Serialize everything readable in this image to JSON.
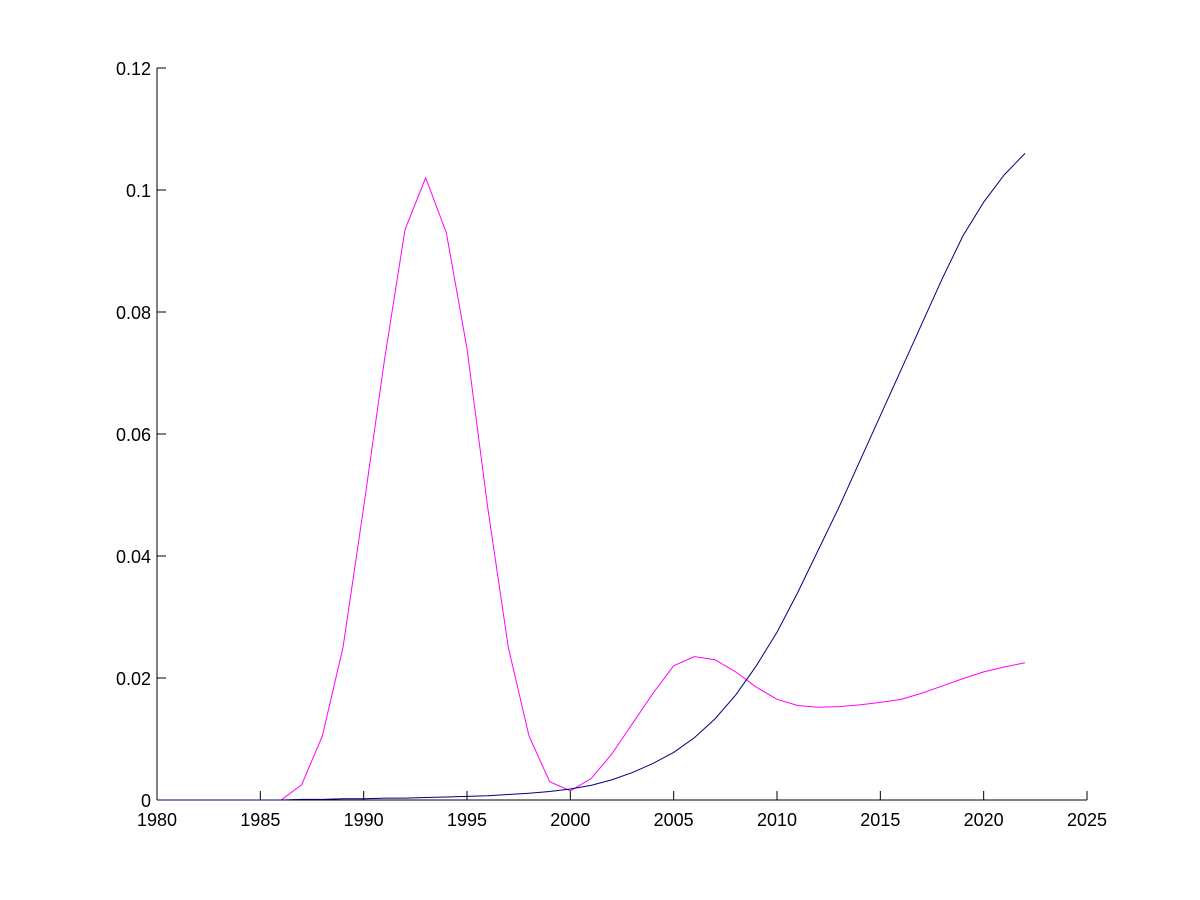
{
  "chart_data": {
    "type": "line",
    "x": [
      1980,
      1981,
      1982,
      1983,
      1984,
      1985,
      1986,
      1987,
      1988,
      1989,
      1990,
      1991,
      1992,
      1993,
      1994,
      1995,
      1996,
      1997,
      1998,
      1999,
      2000,
      2001,
      2002,
      2003,
      2004,
      2005,
      2006,
      2007,
      2008,
      2009,
      2010,
      2011,
      2012,
      2013,
      2014,
      2015,
      2016,
      2017,
      2018,
      2019,
      2020,
      2021,
      2022
    ],
    "series": [
      {
        "color": "#ff00ff",
        "values": [
          0,
          0,
          0,
          0,
          0,
          0,
          0,
          0.0025,
          0.0105,
          0.025,
          0.048,
          0.072,
          0.0935,
          0.102,
          0.093,
          0.074,
          0.048,
          0.025,
          0.0105,
          0.003,
          0.0015,
          0.0035,
          0.0075,
          0.0125,
          0.0175,
          0.022,
          0.0235,
          0.023,
          0.021,
          0.0185,
          0.0165,
          0.0155,
          0.0152,
          0.0153,
          0.0156,
          0.016,
          0.0165,
          0.0175,
          0.0187,
          0.0199,
          0.021,
          0.0218,
          0.0225
        ]
      },
      {
        "color": "#000080",
        "values": [
          0,
          0,
          0,
          0,
          0,
          0,
          0,
          0.0001,
          0.0001,
          0.0002,
          0.0002,
          0.0003,
          0.0003,
          0.0004,
          0.0005,
          0.0006,
          0.0007,
          0.0009,
          0.0011,
          0.0014,
          0.0018,
          0.0024,
          0.0033,
          0.0045,
          0.006,
          0.0078,
          0.0102,
          0.0133,
          0.0172,
          0.022,
          0.0275,
          0.034,
          0.041,
          0.048,
          0.0555,
          0.063,
          0.0705,
          0.078,
          0.0855,
          0.0925,
          0.098,
          0.1025,
          0.106
        ]
      }
    ],
    "xlim": [
      1980,
      2025
    ],
    "xticks": [
      1980,
      1985,
      1990,
      1995,
      2000,
      2005,
      2010,
      2015,
      2020,
      2025
    ],
    "ylim": [
      0,
      0.12
    ],
    "yticks": [
      0,
      0.02,
      0.04,
      0.06,
      0.08,
      0.1,
      0.12
    ]
  }
}
